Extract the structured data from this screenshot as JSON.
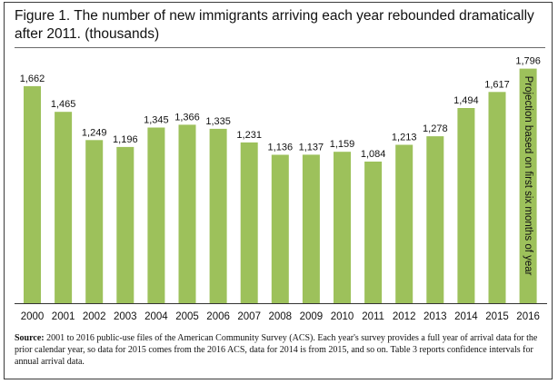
{
  "chart_data": {
    "type": "bar",
    "title": "Figure 1. The number of new immigrants arriving each year rebounded dramatically after 2011. (thousands)",
    "categories": [
      "2000",
      "2001",
      "2002",
      "2003",
      "2004",
      "2005",
      "2006",
      "2007",
      "2008",
      "2009",
      "2010",
      "2011",
      "2012",
      "2013",
      "2014",
      "2015",
      "2016"
    ],
    "values": [
      1662,
      1465,
      1249,
      1196,
      1345,
      1366,
      1335,
      1231,
      1136,
      1137,
      1159,
      1084,
      1213,
      1278,
      1494,
      1617,
      1796
    ],
    "value_labels": [
      "1,662",
      "1,465",
      "1,249",
      "1,196",
      "1,345",
      "1,366",
      "1,335",
      "1,231",
      "1,136",
      "1,137",
      "1,159",
      "1,084",
      "1,213",
      "1,278",
      "1,494",
      "1,617",
      "1,796"
    ],
    "ylim": [
      0,
      1800
    ],
    "xlabel": "",
    "ylabel": "",
    "grid": false,
    "legend": "none",
    "bar_color": "#9dc15b",
    "annotation": {
      "category": "2016",
      "text": "Projection based on first six months of year"
    }
  },
  "source": {
    "label": "Source:",
    "text": "2001 to 2016 public-use files of the American Community Survey (ACS). Each year's survey provides a full year of arrival data for the prior calendar year, so data for 2015 comes from the 2016 ACS, data for 2014 is from 2015, and so on. Table 3 reports confidence intervals for annual arrival data."
  }
}
